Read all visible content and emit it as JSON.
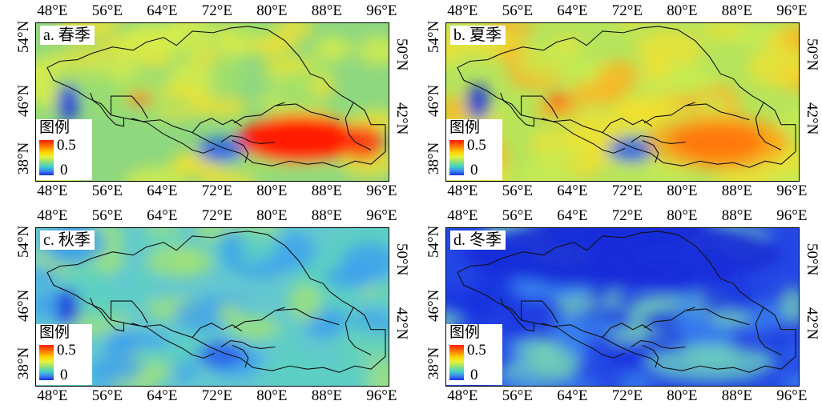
{
  "x_ticks": [
    "48°E",
    "56°E",
    "64°E",
    "72°E",
    "80°E",
    "88°E",
    "96°E"
  ],
  "y_ticks_left": [
    "54°N",
    "46°N",
    "38°N"
  ],
  "y_ticks_right": [
    "50°N",
    "42°N"
  ],
  "legend": {
    "title": "图例",
    "max": "0.5",
    "min": "0"
  },
  "panels": [
    {
      "label": "a. 春季",
      "hotspot": "high",
      "base_colors": [
        "#9fe06a",
        "#d9ee48",
        "#f0e030"
      ],
      "overall": "#8fd880"
    },
    {
      "label": "b. 夏季",
      "hotspot": "medium",
      "base_colors": [
        "#c8ec50",
        "#f0e030",
        "#ffb020"
      ],
      "overall": "#b6e45c"
    },
    {
      "label": "c. 秋季",
      "hotspot": "none",
      "base_colors": [
        "#5cd0c0",
        "#a6e470",
        "#3a9ef0"
      ],
      "overall": "#64c8d0"
    },
    {
      "label": "d. 冬季",
      "hotspot": "none",
      "base_colors": [
        "#1a36e0",
        "#3a86f0",
        "#7ad8b0"
      ],
      "overall": "#2448e4"
    }
  ]
}
